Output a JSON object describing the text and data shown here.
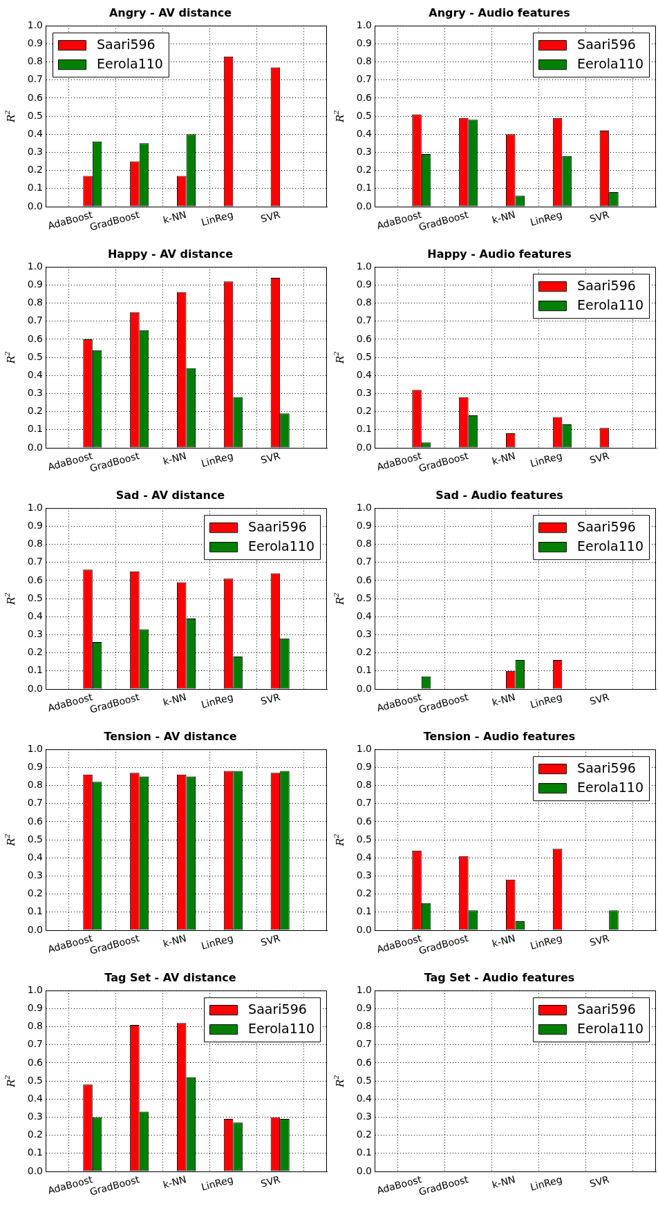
{
  "chart_data": [
    {
      "type": "bar",
      "title": "Angry - AV distance",
      "ylabel": "R$^{2}$",
      "categories": [
        "AdaBoost",
        "GradBoost",
        "k-NN",
        "LinReg",
        "SVR"
      ],
      "series": [
        {
          "name": "Saari596",
          "color": "#ff0000",
          "values": [
            0.17,
            0.25,
            0.17,
            0.83,
            0.77
          ]
        },
        {
          "name": "Eerola110",
          "color": "#008000",
          "values": [
            0.36,
            0.35,
            0.4,
            0,
            0
          ]
        }
      ],
      "ylim": [
        0,
        1
      ],
      "yticks": [
        {
          "value": 0,
          "label": "0.0"
        },
        {
          "value": 0.1,
          "label": "0.1"
        },
        {
          "value": 0.2,
          "label": "0.2"
        },
        {
          "value": 0.3,
          "label": "0.3"
        },
        {
          "value": 0.4,
          "label": "0.4"
        },
        {
          "value": 0.5,
          "label": "0.5"
        },
        {
          "value": 0.6,
          "label": "0.6"
        },
        {
          "value": 0.7,
          "label": "0.7"
        },
        {
          "value": 0.8,
          "label": "0.8"
        },
        {
          "value": 0.9,
          "label": "0.9"
        },
        {
          "value": 1,
          "label": "1.0"
        }
      ],
      "grid": true,
      "legend": "top left"
    },
    {
      "type": "bar",
      "title": "Angry - Audio features",
      "ylabel": "R$^{2}$",
      "categories": [
        "AdaBoost",
        "GradBoost",
        "k-NN",
        "LinReg",
        "SVR"
      ],
      "series": [
        {
          "name": "Saari596",
          "color": "#ff0000",
          "values": [
            0.51,
            0.49,
            0.4,
            0.49,
            0.42
          ]
        },
        {
          "name": "Eerola110",
          "color": "#008000",
          "values": [
            0.29,
            0.48,
            0.06,
            0.28,
            0.08
          ]
        }
      ],
      "ylim": [
        0,
        1
      ],
      "yticks": [
        {
          "value": 0,
          "label": "0.0"
        },
        {
          "value": 0.1,
          "label": "0.1"
        },
        {
          "value": 0.2,
          "label": "0.2"
        },
        {
          "value": 0.3,
          "label": "0.3"
        },
        {
          "value": 0.4,
          "label": "0.4"
        },
        {
          "value": 0.5,
          "label": "0.5"
        },
        {
          "value": 0.6,
          "label": "0.6"
        },
        {
          "value": 0.7,
          "label": "0.7"
        },
        {
          "value": 0.8,
          "label": "0.8"
        },
        {
          "value": 0.9,
          "label": "0.9"
        },
        {
          "value": 1,
          "label": "1.0"
        }
      ],
      "grid": true,
      "legend": "top right"
    },
    {
      "type": "bar",
      "title": "Happy - AV distance",
      "ylabel": "R$^{2}$",
      "categories": [
        "AdaBoost",
        "GradBoost",
        "k-NN",
        "LinReg",
        "SVR"
      ],
      "series": [
        {
          "color": "#ff0000",
          "values": [
            0.6,
            0.75,
            0.86,
            0.92,
            0.94
          ]
        },
        {
          "color": "#008000",
          "values": [
            0.54,
            0.65,
            0.44,
            0.28,
            0.19
          ]
        }
      ],
      "ylim": [
        0,
        1
      ],
      "yticks": [
        {
          "value": 0,
          "label": "0.0"
        },
        {
          "value": 0.1,
          "label": "0.1"
        },
        {
          "value": 0.2,
          "label": "0.2"
        },
        {
          "value": 0.3,
          "label": "0.3"
        },
        {
          "value": 0.4,
          "label": "0.4"
        },
        {
          "value": 0.5,
          "label": "0.5"
        },
        {
          "value": 0.6,
          "label": "0.6"
        },
        {
          "value": 0.7,
          "label": "0.7"
        },
        {
          "value": 0.8,
          "label": "0.8"
        },
        {
          "value": 0.9,
          "label": "0.9"
        },
        {
          "value": 1,
          "label": "1.0"
        }
      ],
      "grid": true
    },
    {
      "type": "bar",
      "title": "Happy - Audio features",
      "ylabel": "R$^{2}$",
      "categories": [
        "AdaBoost",
        "GradBoost",
        "k-NN",
        "LinReg",
        "SVR"
      ],
      "series": [
        {
          "name": "Saari596",
          "color": "#ff0000",
          "values": [
            0.32,
            0.28,
            0.08,
            0.17,
            0.11
          ]
        },
        {
          "name": "Eerola110",
          "color": "#008000",
          "values": [
            0.03,
            0.18,
            0,
            0.13,
            0
          ]
        }
      ],
      "ylim": [
        0,
        1
      ],
      "yticks": [
        {
          "value": 0,
          "label": "0.0"
        },
        {
          "value": 0.1,
          "label": "0.1"
        },
        {
          "value": 0.2,
          "label": "0.2"
        },
        {
          "value": 0.3,
          "label": "0.3"
        },
        {
          "value": 0.4,
          "label": "0.4"
        },
        {
          "value": 0.5,
          "label": "0.5"
        },
        {
          "value": 0.6,
          "label": "0.6"
        },
        {
          "value": 0.7,
          "label": "0.7"
        },
        {
          "value": 0.8,
          "label": "0.8"
        },
        {
          "value": 0.9,
          "label": "0.9"
        },
        {
          "value": 1,
          "label": "1.0"
        }
      ],
      "grid": true,
      "legend": "top right"
    },
    {
      "type": "bar",
      "title": "Sad - AV distance",
      "ylabel": "R$^{2}$",
      "categories": [
        "AdaBoost",
        "GradBoost",
        "k-NN",
        "LinReg",
        "SVR"
      ],
      "series": [
        {
          "name": "Saari596",
          "color": "#ff0000",
          "values": [
            0.66,
            0.65,
            0.59,
            0.61,
            0.64
          ]
        },
        {
          "name": "Eerola110",
          "color": "#008000",
          "values": [
            0.26,
            0.33,
            0.39,
            0.18,
            0.28
          ]
        }
      ],
      "ylim": [
        0,
        1
      ],
      "yticks": [
        {
          "value": 0,
          "label": "0.0"
        },
        {
          "value": 0.1,
          "label": "0.1"
        },
        {
          "value": 0.2,
          "label": "0.2"
        },
        {
          "value": 0.3,
          "label": "0.3"
        },
        {
          "value": 0.4,
          "label": "0.4"
        },
        {
          "value": 0.5,
          "label": "0.5"
        },
        {
          "value": 0.6,
          "label": "0.6"
        },
        {
          "value": 0.7,
          "label": "0.7"
        },
        {
          "value": 0.8,
          "label": "0.8"
        },
        {
          "value": 0.9,
          "label": "0.9"
        },
        {
          "value": 1,
          "label": "1.0"
        }
      ],
      "grid": true,
      "legend": "top right"
    },
    {
      "type": "bar",
      "title": "Sad - Audio features",
      "ylabel": "R$^{2}$",
      "categories": [
        "AdaBoost",
        "GradBoost",
        "k-NN",
        "LinReg",
        "SVR"
      ],
      "series": [
        {
          "name": "Saari596",
          "color": "#ff0000",
          "values": [
            0,
            0,
            0.1,
            0.16,
            0
          ]
        },
        {
          "name": "Eerola110",
          "color": "#008000",
          "values": [
            0.07,
            0,
            0.16,
            0,
            0
          ]
        }
      ],
      "ylim": [
        0,
        1
      ],
      "yticks": [
        {
          "value": 0,
          "label": "0.0"
        },
        {
          "value": 0.1,
          "label": "0.1"
        },
        {
          "value": 0.2,
          "label": "0.2"
        },
        {
          "value": 0.3,
          "label": "0.3"
        },
        {
          "value": 0.4,
          "label": "0.4"
        },
        {
          "value": 0.5,
          "label": "0.5"
        },
        {
          "value": 0.6,
          "label": "0.6"
        },
        {
          "value": 0.7,
          "label": "0.7"
        },
        {
          "value": 0.8,
          "label": "0.8"
        },
        {
          "value": 0.9,
          "label": "0.9"
        },
        {
          "value": 1,
          "label": "1.0"
        }
      ],
      "grid": true,
      "legend": "top right"
    },
    {
      "type": "bar",
      "title": "Tension - AV distance",
      "ylabel": "R$^{2}$",
      "categories": [
        "AdaBoost",
        "GradBoost",
        "k-NN",
        "LinReg",
        "SVR"
      ],
      "series": [
        {
          "color": "#ff0000",
          "values": [
            0.86,
            0.87,
            0.86,
            0.88,
            0.87
          ]
        },
        {
          "color": "#008000",
          "values": [
            0.82,
            0.85,
            0.85,
            0.88,
            0.88
          ]
        }
      ],
      "ylim": [
        0,
        1
      ],
      "yticks": [
        {
          "value": 0,
          "label": "0.0"
        },
        {
          "value": 0.1,
          "label": "0.1"
        },
        {
          "value": 0.2,
          "label": "0.2"
        },
        {
          "value": 0.3,
          "label": "0.3"
        },
        {
          "value": 0.4,
          "label": "0.4"
        },
        {
          "value": 0.5,
          "label": "0.5"
        },
        {
          "value": 0.6,
          "label": "0.6"
        },
        {
          "value": 0.7,
          "label": "0.7"
        },
        {
          "value": 0.8,
          "label": "0.8"
        },
        {
          "value": 0.9,
          "label": "0.9"
        },
        {
          "value": 1,
          "label": "1.0"
        }
      ],
      "grid": true
    },
    {
      "type": "bar",
      "title": "Tension - Audio features",
      "ylabel": "R$^{2}$",
      "categories": [
        "AdaBoost",
        "GradBoost",
        "k-NN",
        "LinReg",
        "SVR"
      ],
      "series": [
        {
          "name": "Saari596",
          "color": "#ff0000",
          "values": [
            0.44,
            0.41,
            0.28,
            0.45,
            0
          ]
        },
        {
          "name": "Eerola110",
          "color": "#008000",
          "values": [
            0.15,
            0.11,
            0.05,
            0,
            0.11
          ]
        }
      ],
      "ylim": [
        0,
        1
      ],
      "yticks": [
        {
          "value": 0,
          "label": "0.0"
        },
        {
          "value": 0.1,
          "label": "0.1"
        },
        {
          "value": 0.2,
          "label": "0.2"
        },
        {
          "value": 0.3,
          "label": "0.3"
        },
        {
          "value": 0.4,
          "label": "0.4"
        },
        {
          "value": 0.5,
          "label": "0.5"
        },
        {
          "value": 0.6,
          "label": "0.6"
        },
        {
          "value": 0.7,
          "label": "0.7"
        },
        {
          "value": 0.8,
          "label": "0.8"
        },
        {
          "value": 0.9,
          "label": "0.9"
        },
        {
          "value": 1,
          "label": "1.0"
        }
      ],
      "grid": true,
      "legend": "top right"
    },
    {
      "type": "bar",
      "title": "Tag Set - AV distance",
      "ylabel": "R$^{2}$",
      "categories": [
        "AdaBoost",
        "GradBoost",
        "k-NN",
        "LinReg",
        "SVR"
      ],
      "series": [
        {
          "name": "Saari596",
          "color": "#ff0000",
          "values": [
            0.48,
            0.81,
            0.82,
            0.29,
            0.3
          ]
        },
        {
          "name": "Eerola110",
          "color": "#008000",
          "values": [
            0.3,
            0.33,
            0.52,
            0.27,
            0.29
          ]
        }
      ],
      "ylim": [
        0,
        1
      ],
      "yticks": [
        {
          "value": 0,
          "label": "0.0"
        },
        {
          "value": 0.1,
          "label": "0.1"
        },
        {
          "value": 0.2,
          "label": "0.2"
        },
        {
          "value": 0.3,
          "label": "0.3"
        },
        {
          "value": 0.4,
          "label": "0.4"
        },
        {
          "value": 0.5,
          "label": "0.5"
        },
        {
          "value": 0.6,
          "label": "0.6"
        },
        {
          "value": 0.7,
          "label": "0.7"
        },
        {
          "value": 0.8,
          "label": "0.8"
        },
        {
          "value": 0.9,
          "label": "0.9"
        },
        {
          "value": 1,
          "label": "1.0"
        }
      ],
      "grid": true,
      "legend": "top right"
    },
    {
      "type": "bar",
      "title": "Tag Set - Audio features",
      "ylabel": "R$^{2}$",
      "categories": [
        "AdaBoost",
        "GradBoost",
        "k-NN",
        "LinReg",
        "SVR"
      ],
      "series": [
        {
          "name": "Saari596",
          "color": "#ff0000",
          "values": [
            0,
            0,
            0,
            0,
            0
          ]
        },
        {
          "name": "Eerola110",
          "color": "#008000",
          "values": [
            0,
            0,
            0,
            0,
            0
          ]
        }
      ],
      "ylim": [
        0,
        1
      ],
      "yticks": [
        {
          "value": 0,
          "label": "0.0"
        },
        {
          "value": 0.1,
          "label": "0.1"
        },
        {
          "value": 0.2,
          "label": "0.2"
        },
        {
          "value": 0.3,
          "label": "0.3"
        },
        {
          "value": 0.4,
          "label": "0.4"
        },
        {
          "value": 0.5,
          "label": "0.5"
        },
        {
          "value": 0.6,
          "label": "0.6"
        },
        {
          "value": 0.7,
          "label": "0.7"
        },
        {
          "value": 0.8,
          "label": "0.8"
        },
        {
          "value": 0.9,
          "label": "0.9"
        },
        {
          "value": 1,
          "label": "1.0"
        }
      ],
      "grid": true,
      "legend": "top right"
    }
  ]
}
